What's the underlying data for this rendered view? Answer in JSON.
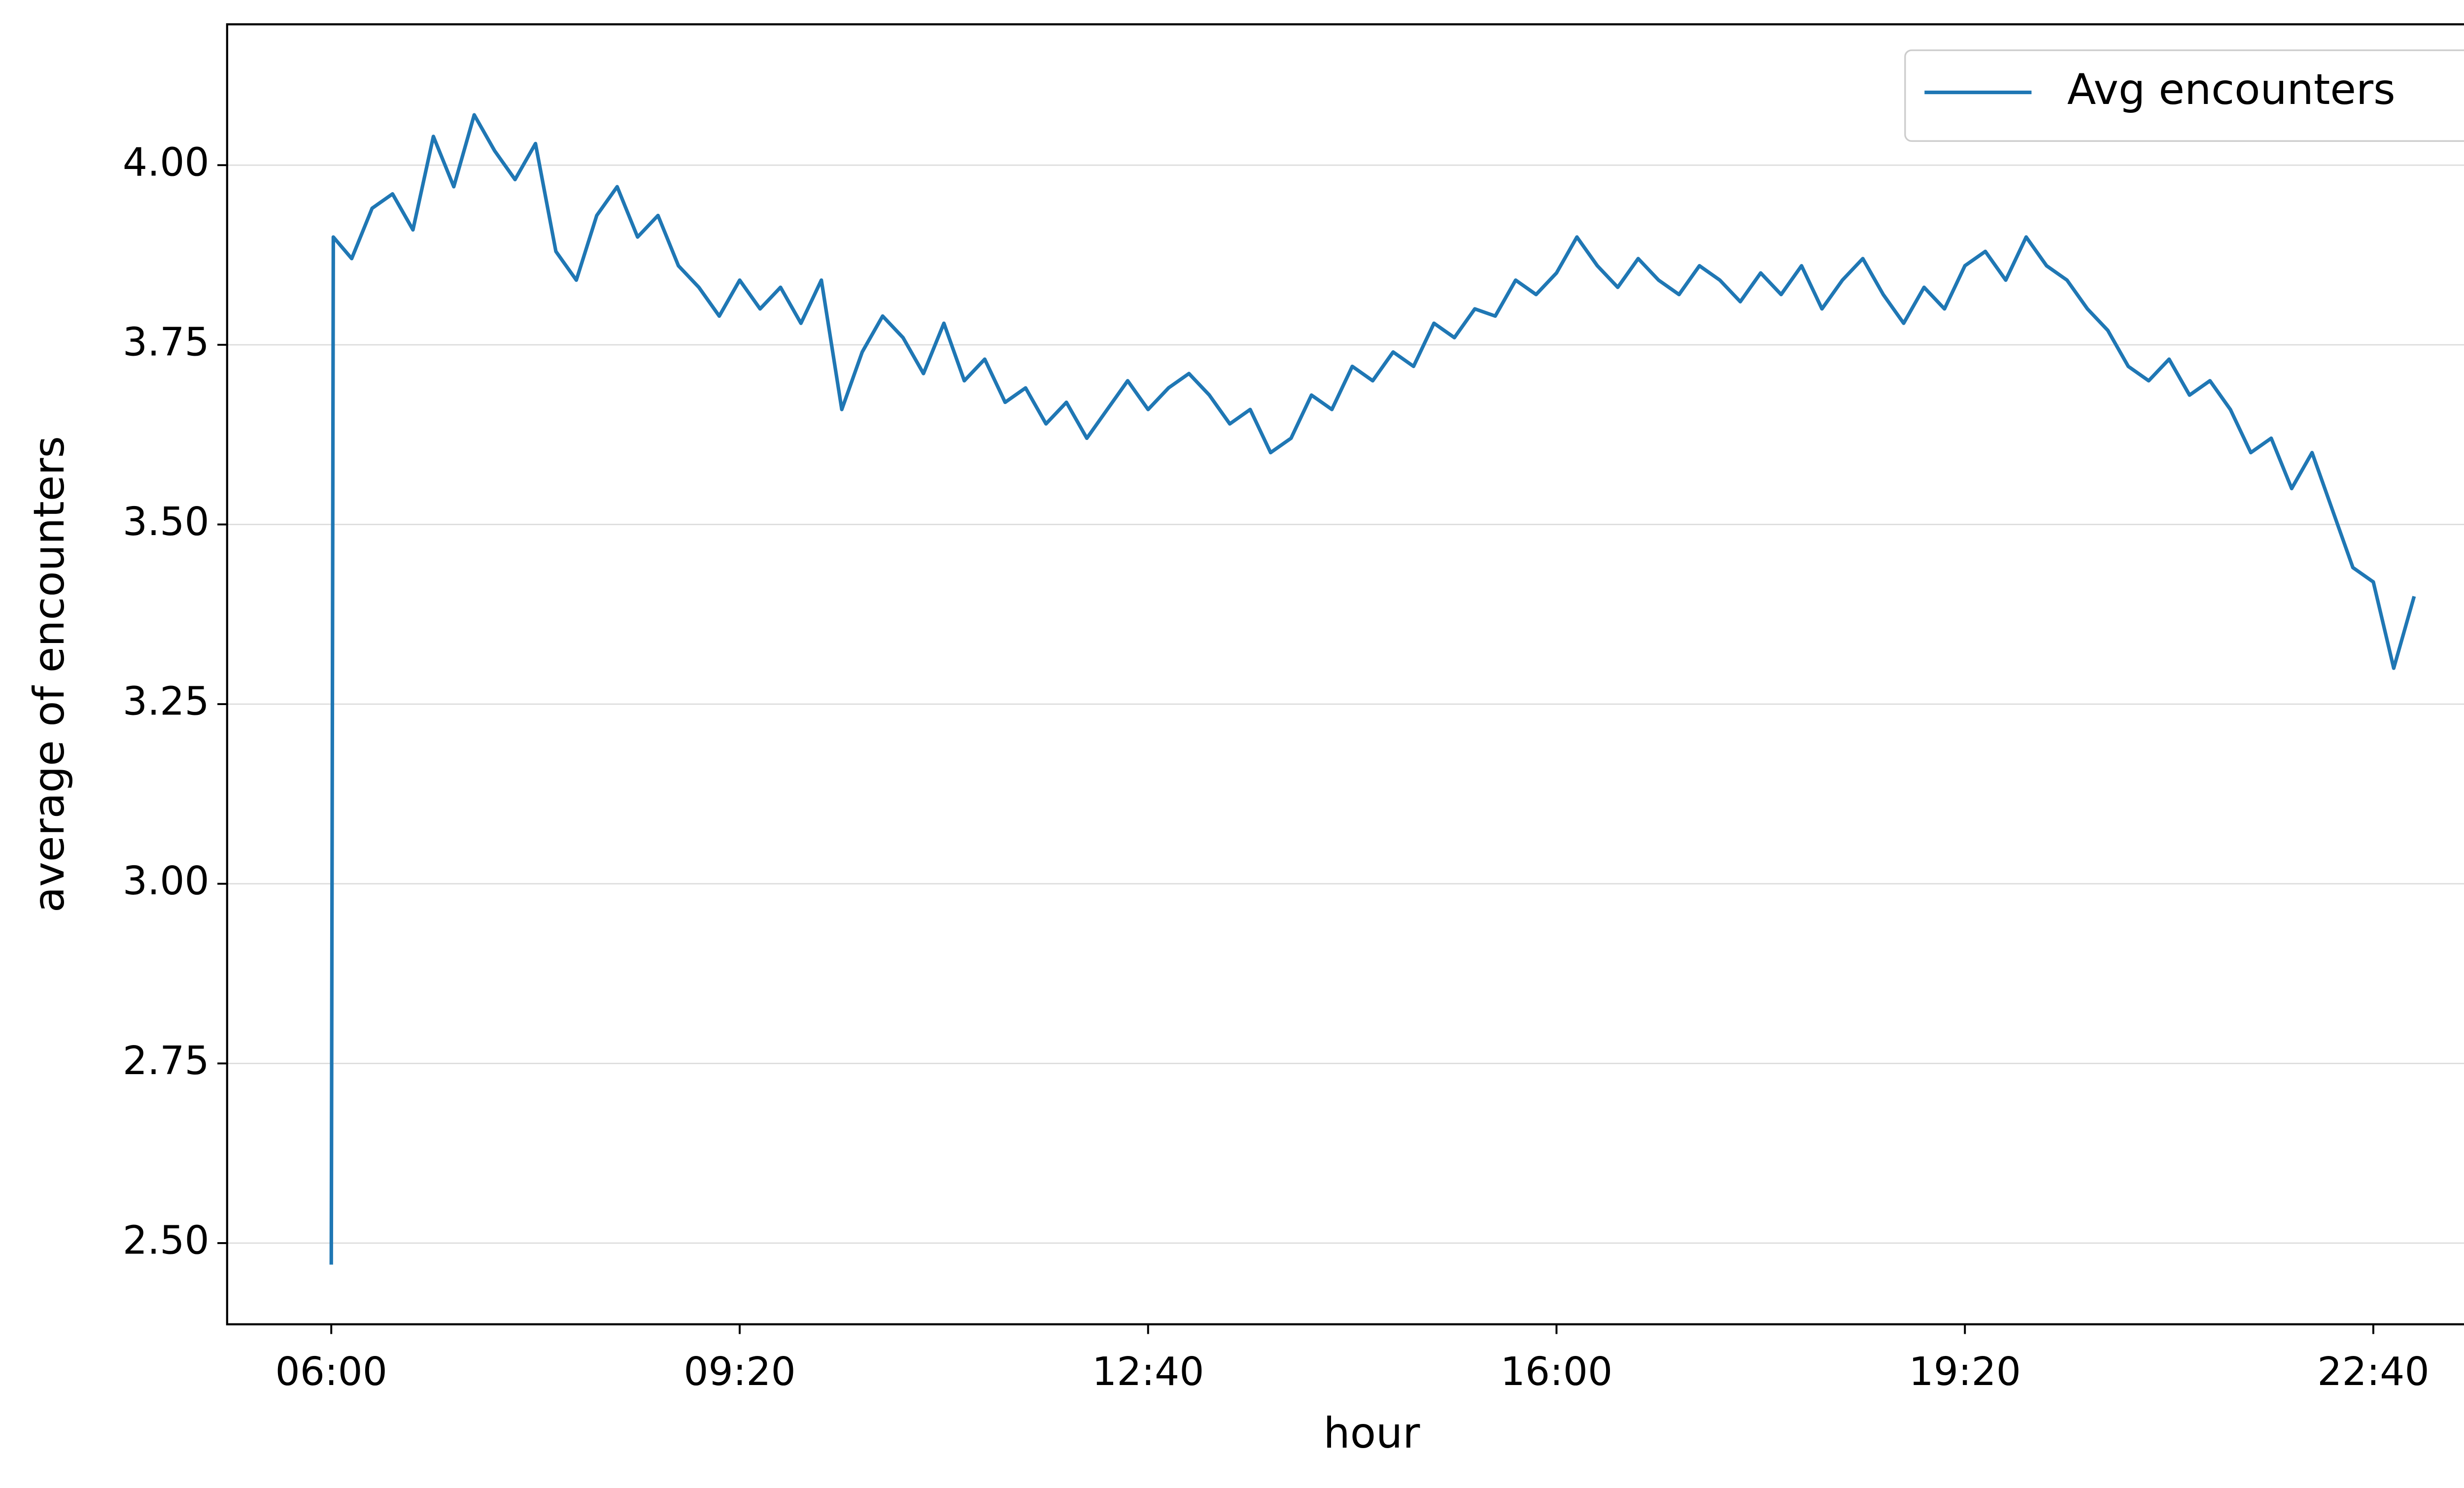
{
  "chart_data": {
    "type": "line",
    "xlabel": "hour",
    "ylabel": "average of encounters",
    "x": [
      "06:00",
      "06:01",
      "06:10",
      "06:20",
      "06:30",
      "06:40",
      "06:50",
      "07:00",
      "07:10",
      "07:20",
      "07:30",
      "07:40",
      "07:50",
      "08:00",
      "08:10",
      "08:20",
      "08:30",
      "08:40",
      "08:50",
      "09:00",
      "09:10",
      "09:20",
      "09:30",
      "09:40",
      "09:50",
      "10:00",
      "10:10",
      "10:20",
      "10:30",
      "10:40",
      "10:50",
      "11:00",
      "11:10",
      "11:20",
      "11:30",
      "11:40",
      "11:50",
      "12:00",
      "12:10",
      "12:20",
      "12:30",
      "12:40",
      "12:50",
      "13:00",
      "13:10",
      "13:20",
      "13:30",
      "13:40",
      "13:50",
      "14:00",
      "14:10",
      "14:20",
      "14:30",
      "14:40",
      "14:50",
      "15:00",
      "15:10",
      "15:20",
      "15:30",
      "15:40",
      "15:50",
      "16:00",
      "16:10",
      "16:20",
      "16:30",
      "16:40",
      "16:50",
      "17:00",
      "17:10",
      "17:20",
      "17:30",
      "17:40",
      "17:50",
      "18:00",
      "18:10",
      "18:20",
      "18:30",
      "18:40",
      "18:50",
      "19:00",
      "19:10",
      "19:20",
      "19:30",
      "19:40",
      "19:50",
      "20:00",
      "20:10",
      "20:20",
      "20:30",
      "20:40",
      "20:50",
      "21:00",
      "21:10",
      "21:20",
      "21:30",
      "21:40",
      "21:50",
      "22:00",
      "22:10",
      "22:20",
      "22:30",
      "22:40",
      "22:50",
      "23:00"
    ],
    "series": [
      {
        "name": "Avg encounters",
        "color": "#1f77b4",
        "values": [
          2.47,
          3.9,
          3.87,
          3.94,
          3.96,
          3.91,
          4.04,
          3.97,
          4.07,
          4.02,
          3.98,
          4.03,
          3.88,
          3.84,
          3.93,
          3.97,
          3.9,
          3.93,
          3.86,
          3.83,
          3.79,
          3.84,
          3.8,
          3.83,
          3.78,
          3.84,
          3.66,
          3.74,
          3.79,
          3.76,
          3.71,
          3.78,
          3.7,
          3.73,
          3.67,
          3.69,
          3.64,
          3.67,
          3.62,
          3.66,
          3.7,
          3.66,
          3.69,
          3.71,
          3.68,
          3.64,
          3.66,
          3.6,
          3.62,
          3.68,
          3.66,
          3.72,
          3.7,
          3.74,
          3.72,
          3.78,
          3.76,
          3.8,
          3.79,
          3.84,
          3.82,
          3.85,
          3.9,
          3.86,
          3.83,
          3.87,
          3.84,
          3.82,
          3.86,
          3.84,
          3.81,
          3.85,
          3.82,
          3.86,
          3.8,
          3.84,
          3.87,
          3.82,
          3.78,
          3.83,
          3.8,
          3.86,
          3.88,
          3.84,
          3.9,
          3.86,
          3.84,
          3.8,
          3.77,
          3.72,
          3.7,
          3.73,
          3.68,
          3.7,
          3.66,
          3.6,
          3.62,
          3.55,
          3.6,
          3.52,
          3.44,
          3.42,
          3.3,
          3.4
        ]
      }
    ],
    "xlim": [
      "05:09",
      "23:50"
    ],
    "xticks": [
      "06:00",
      "09:20",
      "12:40",
      "16:00",
      "19:20",
      "22:40"
    ],
    "ylim": [
      2.387,
      4.196
    ],
    "yticks": [
      {
        "value": 2.5,
        "label": "2.50"
      },
      {
        "value": 2.75,
        "label": "2.75"
      },
      {
        "value": 3,
        "label": "3.00"
      },
      {
        "value": 3.25,
        "label": "3.25"
      },
      {
        "value": 3.5,
        "label": "3.50"
      },
      {
        "value": 3.75,
        "label": "3.75"
      },
      {
        "value": 4,
        "label": "4.00"
      }
    ],
    "grid": true,
    "legend": "upper right"
  }
}
